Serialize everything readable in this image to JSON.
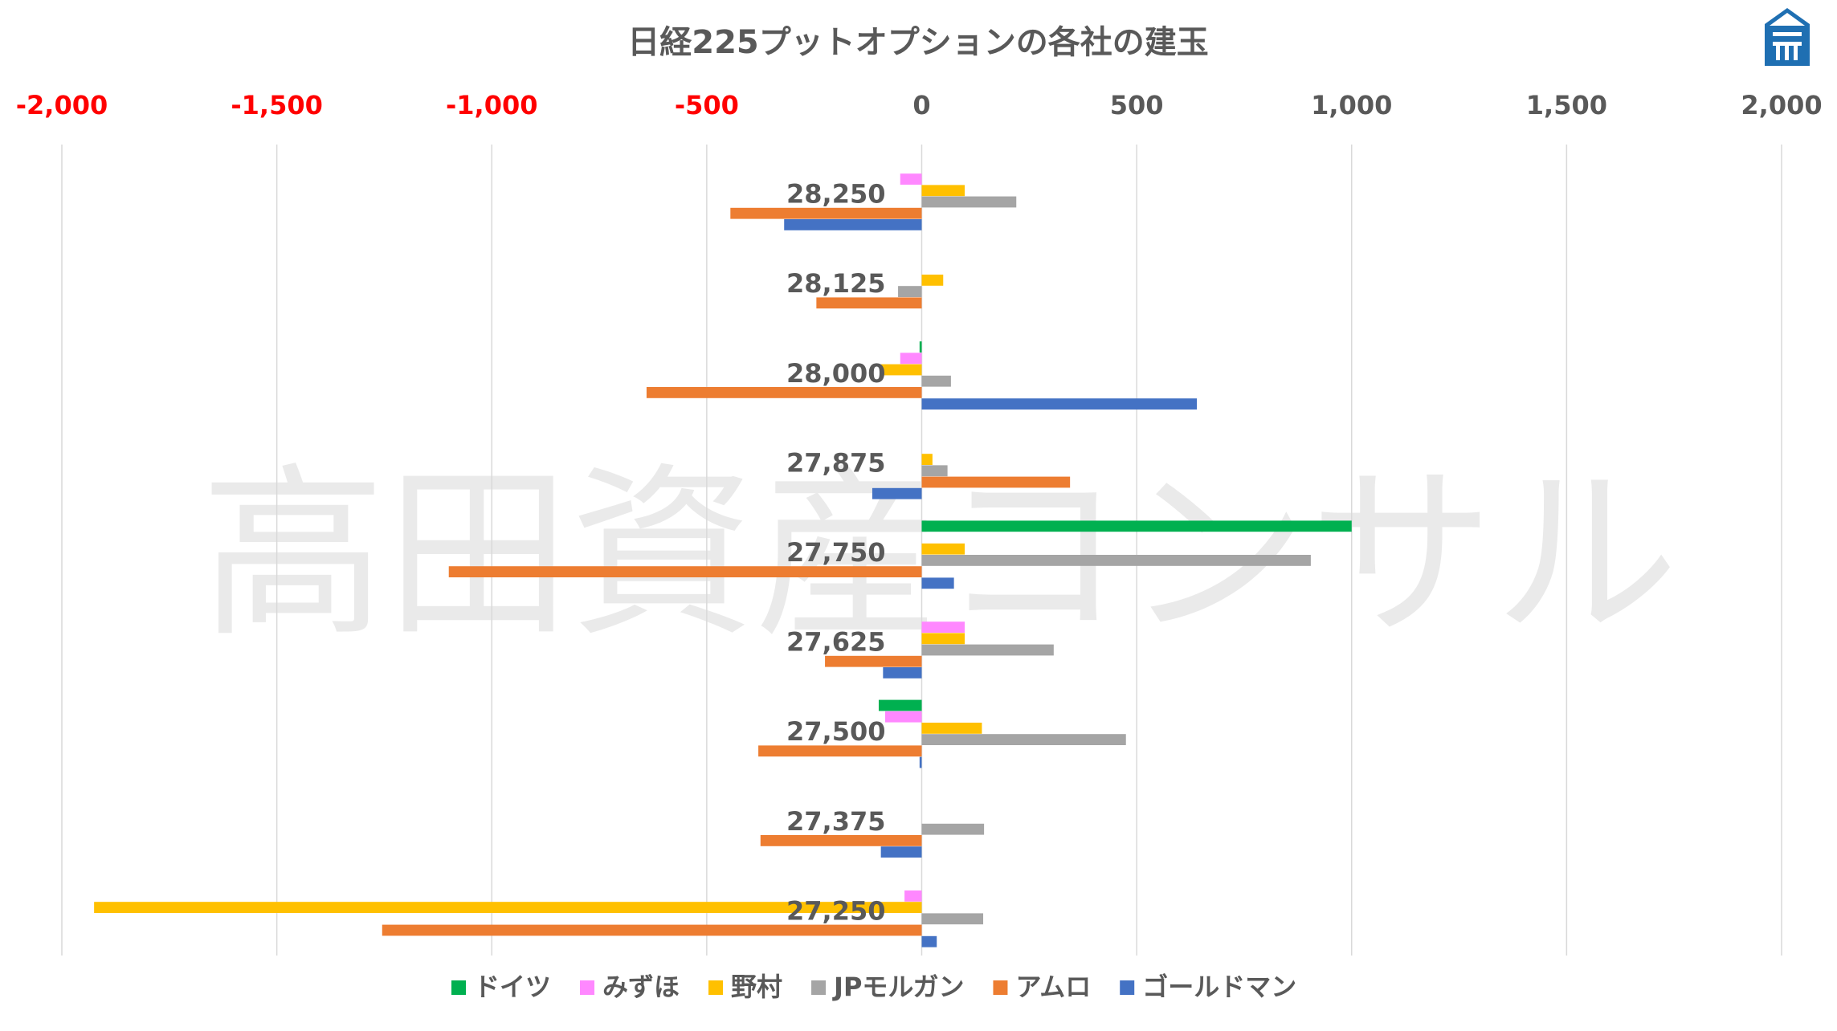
{
  "chart_data": {
    "type": "bar",
    "orientation": "horizontal",
    "title": "日経225プットオプションの各社の建玉",
    "xlim": [
      -2000,
      2000
    ],
    "x_ticks": [
      {
        "value": -2000,
        "label": "-2,000",
        "color": "#ff0000"
      },
      {
        "value": -1500,
        "label": "-1,500",
        "color": "#ff0000"
      },
      {
        "value": -1000,
        "label": "-1,000",
        "color": "#ff0000"
      },
      {
        "value": -500,
        "label": "-500",
        "color": "#ff0000"
      },
      {
        "value": 0,
        "label": "0",
        "color": "#595959"
      },
      {
        "value": 500,
        "label": "500",
        "color": "#595959"
      },
      {
        "value": 1000,
        "label": "1,000",
        "color": "#595959"
      },
      {
        "value": 1500,
        "label": "1,500",
        "color": "#595959"
      },
      {
        "value": 2000,
        "label": "2,000",
        "color": "#595959"
      }
    ],
    "grid": true,
    "legend_position": "bottom",
    "categories": [
      "28,250",
      "28,125",
      "28,000",
      "27,875",
      "27,750",
      "27,625",
      "27,500",
      "27,375",
      "27,250"
    ],
    "series": [
      {
        "name": "ドイツ",
        "color": "#00b050",
        "values": [
          0,
          0,
          -5,
          0,
          1000,
          0,
          -100,
          0,
          0
        ]
      },
      {
        "name": "みずほ",
        "color": "#ff88ff",
        "values": [
          -50,
          0,
          -50,
          0,
          0,
          100,
          -85,
          0,
          -40
        ]
      },
      {
        "name": "野村",
        "color": "#ffc000",
        "values": [
          100,
          50,
          -95,
          25,
          100,
          100,
          140,
          0,
          -1925
        ]
      },
      {
        "name": "JPモルガン",
        "color": "#a5a5a5",
        "values": [
          220,
          -55,
          68,
          60,
          905,
          307,
          475,
          145,
          143
        ]
      },
      {
        "name": "アムロ",
        "color": "#ed7d31",
        "values": [
          -445,
          -245,
          -640,
          345,
          -1100,
          -225,
          -380,
          -375,
          -1255
        ]
      },
      {
        "name": "ゴールドマン",
        "color": "#4472c4",
        "values": [
          -320,
          0,
          640,
          -115,
          75,
          -90,
          -5,
          -95,
          35
        ]
      }
    ]
  },
  "watermark": "高田資産コンサル",
  "logo_icon": "takata-logo-icon"
}
